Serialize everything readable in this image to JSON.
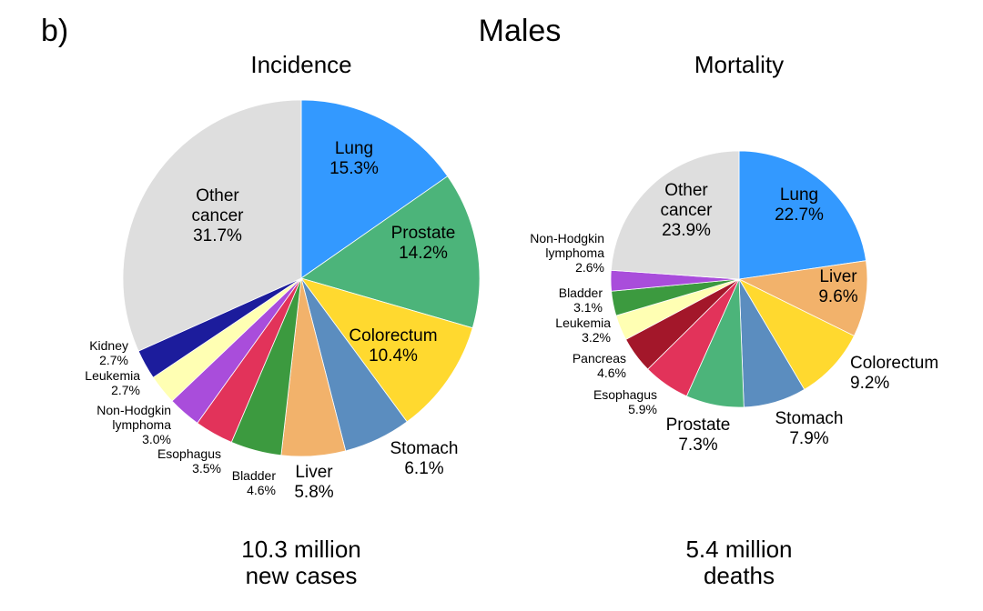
{
  "figure": {
    "panel_label": "b)",
    "title": "Males"
  },
  "chart_data": [
    {
      "type": "pie",
      "title": "Incidence",
      "footer": [
        "10.3 million",
        "new cases"
      ],
      "slices": [
        {
          "label": "Lung",
          "value": 15.3,
          "value_text": "15.3%",
          "color": "#3399FF"
        },
        {
          "label": "Prostate",
          "value": 14.2,
          "value_text": "14.2%",
          "color": "#4CB47A"
        },
        {
          "label": "Colorectum",
          "value": 10.4,
          "value_text": "10.4%",
          "color": "#FFD92F"
        },
        {
          "label": "Stomach",
          "value": 6.1,
          "value_text": "6.1%",
          "color": "#5B8DBF"
        },
        {
          "label": "Liver",
          "value": 5.8,
          "value_text": "5.8%",
          "color": "#F2B26B"
        },
        {
          "label": "Bladder",
          "value": 4.6,
          "value_text": "4.6%",
          "color": "#3C9A3F"
        },
        {
          "label": "Esophagus",
          "value": 3.5,
          "value_text": "3.5%",
          "color": "#E2335A"
        },
        {
          "label": "Non-Hodgkin lymphoma",
          "label_lines": [
            "Non-Hodgkin",
            "lymphoma"
          ],
          "value": 3.0,
          "value_text": "3.0%",
          "color": "#A94DDB"
        },
        {
          "label": "Leukemia",
          "value": 2.7,
          "value_text": "2.7%",
          "color": "#FFFFB3"
        },
        {
          "label": "Kidney",
          "value": 2.7,
          "value_text": "2.7%",
          "color": "#1C1C9C"
        },
        {
          "label": "Other cancer",
          "label_lines": [
            "Other",
            "cancer"
          ],
          "value": 31.7,
          "value_text": "31.7%",
          "color": "#DEDEDE"
        }
      ]
    },
    {
      "type": "pie",
      "title": "Mortality",
      "footer": [
        "5.4 million",
        "deaths"
      ],
      "slices": [
        {
          "label": "Lung",
          "value": 22.7,
          "value_text": "22.7%",
          "color": "#3399FF"
        },
        {
          "label": "Liver",
          "value": 9.6,
          "value_text": "9.6%",
          "color": "#F2B26B"
        },
        {
          "label": "Colorectum",
          "value": 9.2,
          "value_text": "9.2%",
          "color": "#FFD92F"
        },
        {
          "label": "Stomach",
          "value": 7.9,
          "value_text": "7.9%",
          "color": "#5B8DBF"
        },
        {
          "label": "Prostate",
          "value": 7.3,
          "value_text": "7.3%",
          "color": "#4CB47A"
        },
        {
          "label": "Esophagus",
          "value": 5.9,
          "value_text": "5.9%",
          "color": "#E2335A"
        },
        {
          "label": "Pancreas",
          "value": 4.6,
          "value_text": "4.6%",
          "color": "#A3172A"
        },
        {
          "label": "Leukemia",
          "value": 3.2,
          "value_text": "3.2%",
          "color": "#FFFFB3"
        },
        {
          "label": "Bladder",
          "value": 3.1,
          "value_text": "3.1%",
          "color": "#3C9A3F"
        },
        {
          "label": "Non-Hodgkin lymphoma",
          "label_lines": [
            "Non-Hodgkin",
            "lymphoma"
          ],
          "value": 2.6,
          "value_text": "2.6%",
          "color": "#A94DDB"
        },
        {
          "label": "Other cancer",
          "label_lines": [
            "Other",
            "cancer"
          ],
          "value": 23.9,
          "value_text": "23.9%",
          "color": "#DEDEDE"
        }
      ]
    }
  ]
}
